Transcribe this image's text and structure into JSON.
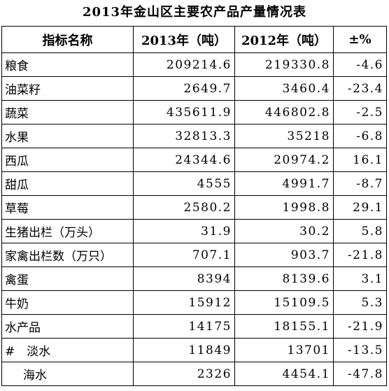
{
  "title": "2013年金山区主要农产品产量情况表",
  "table": {
    "header": [
      "指标名称",
      "2013年（吨）",
      "2012年（吨）",
      "±%"
    ],
    "rows": [
      [
        "粮食",
        "209214.6",
        "219330.8",
        "-4.6"
      ],
      [
        "油菜籽",
        "2649.7",
        "3460.4",
        "-23.4"
      ],
      [
        "蔬菜",
        "435611.9",
        "446802.8",
        "-2.5"
      ],
      [
        "水果",
        "32813.3",
        "35218",
        "-6.8"
      ],
      [
        "西瓜",
        "24344.6",
        "20974.2",
        "16.1"
      ],
      [
        "甜瓜",
        "4555",
        "4991.7",
        "-8.7"
      ],
      [
        "草莓",
        "2580.2",
        "1998.8",
        "29.1"
      ],
      [
        "生猪出栏（万头）",
        "31.9",
        "30.2",
        "5.8"
      ],
      [
        "家禽出栏数（万只）",
        "707.1",
        "903.7",
        "-21.8"
      ],
      [
        "禽蛋",
        "8394",
        "8139.6",
        "3.1"
      ],
      [
        "牛奶",
        "15912",
        "15109.5",
        "5.3"
      ],
      [
        "水产品",
        "14175",
        "18155.1",
        "-21.9"
      ],
      [
        "#　淡水",
        "11849",
        "13701",
        "-13.5"
      ],
      [
        "海水",
        "2326",
        "4454.1",
        "-47.8"
      ]
    ]
  }
}
